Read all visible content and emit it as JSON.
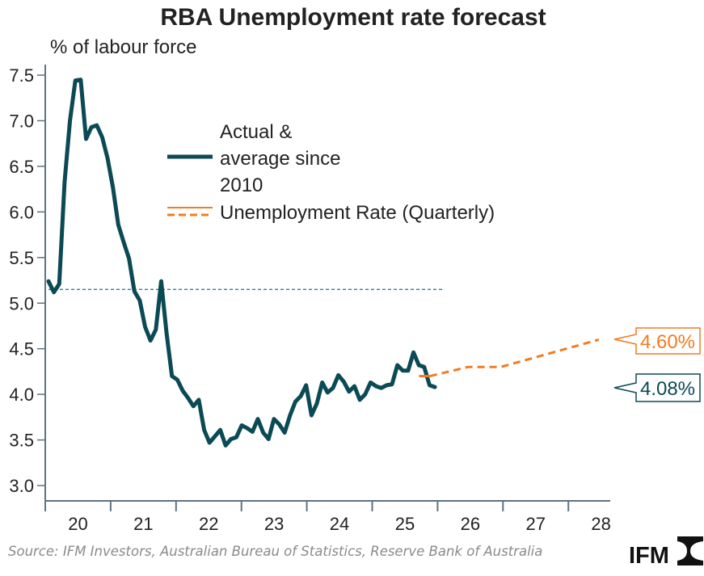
{
  "chart_data": {
    "type": "line",
    "title": "RBA Unemployment rate forecast",
    "ylabel": "% of labour force",
    "ylim": [
      2.85,
      7.6
    ],
    "yticks": [
      "3.0",
      "3.5",
      "4.0",
      "4.5",
      "5.0",
      "5.5",
      "6.0",
      "6.5",
      "7.0",
      "7.5"
    ],
    "xlim": [
      "2020-01",
      "2028-12"
    ],
    "xtick_labels": [
      "20",
      "21",
      "22",
      "23",
      "24",
      "25",
      "26",
      "27",
      "28"
    ],
    "grid": false,
    "legend_placement": "top-center",
    "colors": {
      "actual": "#0b4a55",
      "forecast": "#f47b20",
      "axis": "#5f7380",
      "average": "#2f7f99"
    },
    "series": [
      {
        "name": "Actual & average since 2010",
        "style": "solid",
        "start": "2020-01",
        "frequency": "monthly",
        "values": [
          5.24,
          5.12,
          5.21,
          6.33,
          7.0,
          7.44,
          7.45,
          6.8,
          6.93,
          6.95,
          6.82,
          6.59,
          6.27,
          5.86,
          5.67,
          5.49,
          5.13,
          5.03,
          4.74,
          4.59,
          4.71,
          5.24,
          4.67,
          4.2,
          4.16,
          4.04,
          3.96,
          3.87,
          3.94,
          3.61,
          3.47,
          3.54,
          3.61,
          3.44,
          3.51,
          3.53,
          3.66,
          3.63,
          3.59,
          3.73,
          3.58,
          3.51,
          3.73,
          3.67,
          3.58,
          3.77,
          3.92,
          3.98,
          4.1,
          3.77,
          3.9,
          4.13,
          4.02,
          4.07,
          4.21,
          4.14,
          4.03,
          4.09,
          3.94,
          4.0,
          4.13,
          4.09,
          4.07,
          4.1,
          4.11,
          4.32,
          4.26,
          4.26,
          4.46,
          4.32,
          4.3,
          4.1,
          4.08
        ]
      },
      {
        "name": "Unemployment Rate (Quarterly)",
        "style": "dashed",
        "points": [
          [
            "2025-09",
            4.2
          ],
          [
            "2025-11",
            4.2
          ],
          [
            "2026-06",
            4.3
          ],
          [
            "2026-12",
            4.3
          ],
          [
            "2028-06",
            4.6
          ]
        ]
      }
    ],
    "average_line": {
      "value": 5.15,
      "from": "2020-01",
      "to": "2026-01"
    },
    "legend": {
      "actual_lines": [
        "Actual &",
        "average since",
        "2010"
      ],
      "forecast": "Unemployment Rate (Quarterly)"
    },
    "annotations": {
      "forecast_end": "4.60%",
      "actual_end": "4.08%"
    }
  },
  "footer": {
    "source": "Source: IFM Investors, Australian Bureau of Statistics, Reserve Bank of Australia",
    "logo_text": "IFM"
  }
}
